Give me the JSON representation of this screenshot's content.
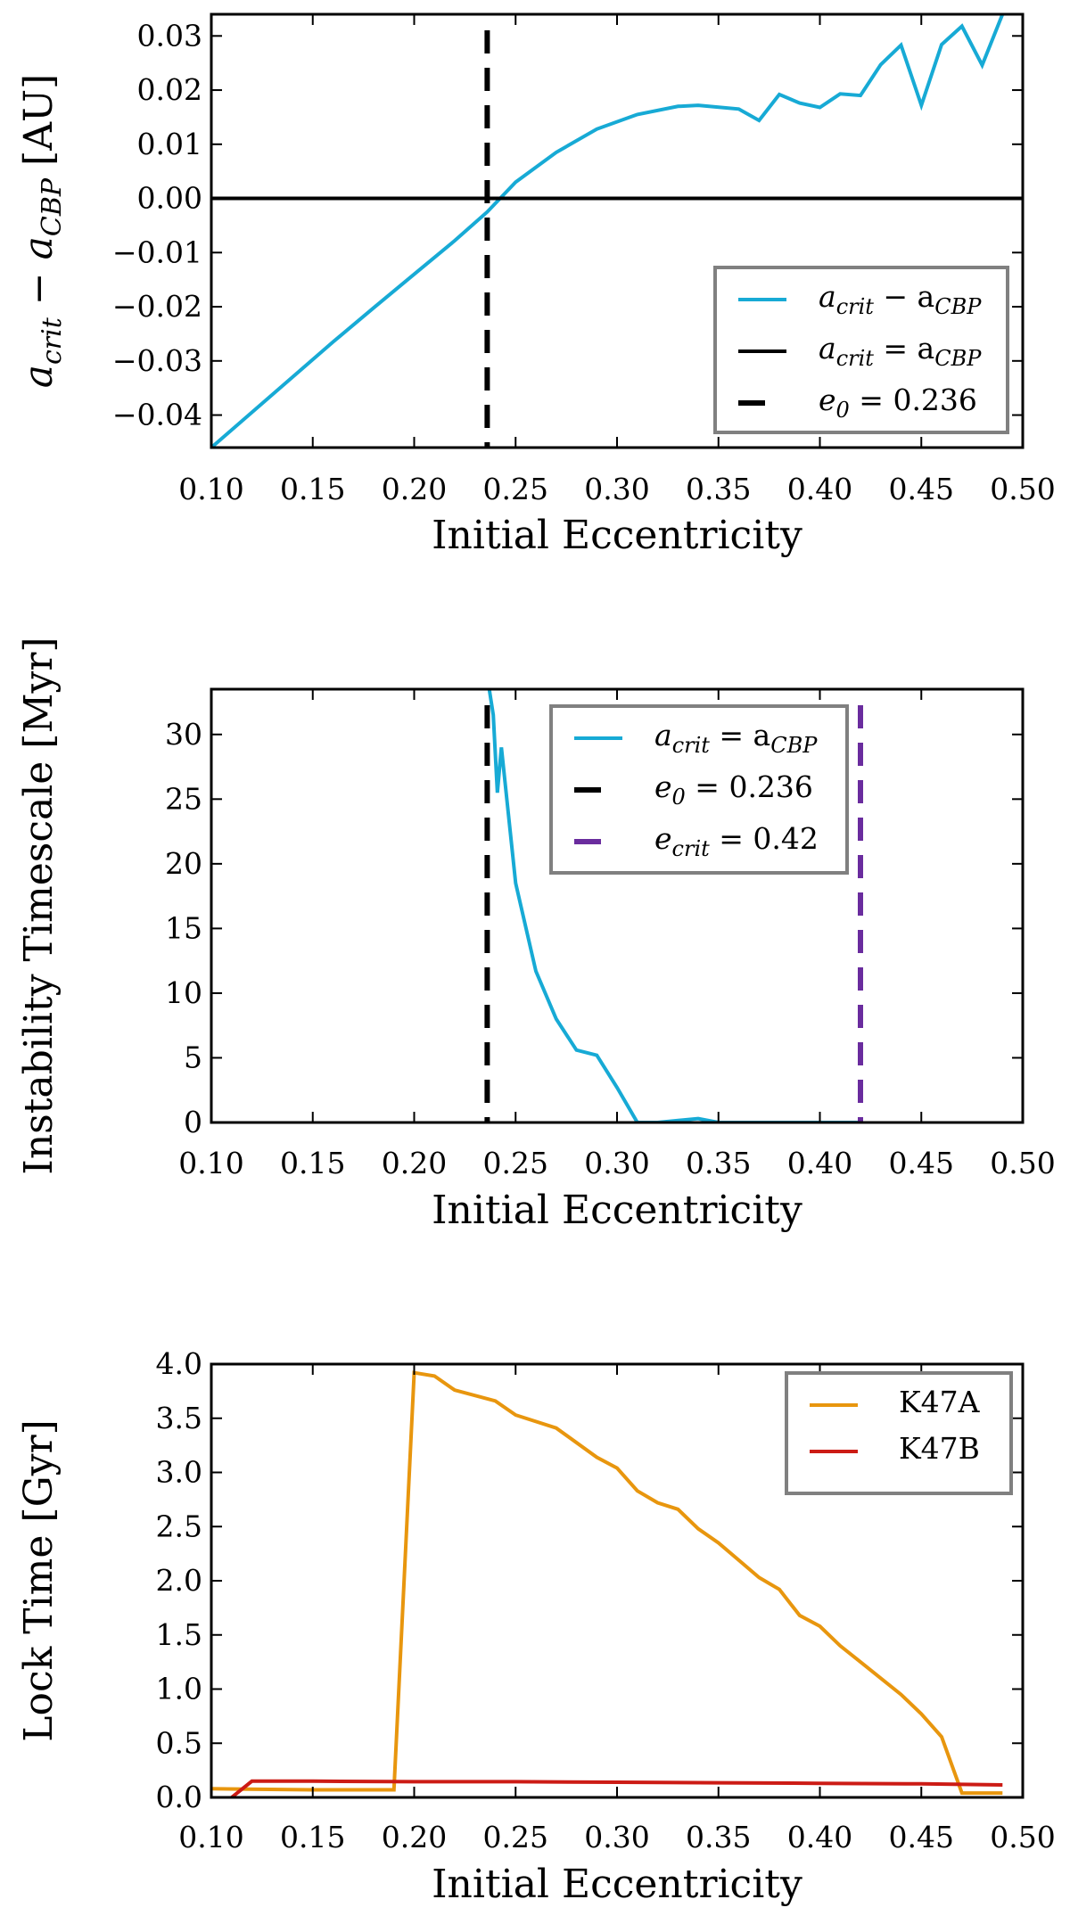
{
  "chart_data": [
    {
      "id": "p1",
      "type": "line",
      "xlabel": "Initial Eccentricity",
      "ylabel": "a_crit − a_CBP [AU]",
      "xlim": [
        0.1,
        0.5
      ],
      "ylim": [
        -0.046,
        0.034
      ],
      "xticks": [
        "0.10",
        "0.15",
        "0.20",
        "0.25",
        "0.30",
        "0.35",
        "0.40",
        "0.45",
        "0.50"
      ],
      "yticks": [
        {
          "v": 0.03,
          "label": "0.03"
        },
        {
          "v": 0.02,
          "label": "0.02"
        },
        {
          "v": 0.01,
          "label": "0.01"
        },
        {
          "v": 0.0,
          "label": "0.00"
        },
        {
          "v": -0.01,
          "label": "−0.01"
        },
        {
          "v": -0.02,
          "label": "−0.02"
        },
        {
          "v": -0.03,
          "label": "−0.03"
        },
        {
          "v": -0.04,
          "label": "−0.04"
        }
      ],
      "series": [
        {
          "name": "a_crit − a_CBP",
          "legend_main": "a",
          "legend_sub1": "crit",
          "legend_op": " − a",
          "legend_sub2": "CBP",
          "color": "#17aad5",
          "style": "solid",
          "x": [
            0.1,
            0.12,
            0.14,
            0.16,
            0.18,
            0.2,
            0.22,
            0.236,
            0.25,
            0.27,
            0.29,
            0.31,
            0.33,
            0.34,
            0.36,
            0.37,
            0.38,
            0.39,
            0.4,
            0.41,
            0.42,
            0.43,
            0.44,
            0.45,
            0.46,
            0.47,
            0.48,
            0.49
          ],
          "y": [
            -0.046,
            -0.0395,
            -0.033,
            -0.0265,
            -0.0202,
            -0.014,
            -0.0078,
            -0.0025,
            0.003,
            0.0085,
            0.0128,
            0.0155,
            0.017,
            0.0172,
            0.0165,
            0.0144,
            0.0192,
            0.0176,
            0.0168,
            0.0193,
            0.019,
            0.0247,
            0.0283,
            0.0172,
            0.0284,
            0.0318,
            0.0246,
            0.034
          ]
        },
        {
          "name": "a_crit = a_CBP",
          "legend_main": "a",
          "legend_sub1": "crit",
          "legend_op": " = a",
          "legend_sub2": "CBP",
          "color": "#000000",
          "style": "hline",
          "y0": 0.0
        },
        {
          "name": "e0 = 0.236",
          "legend_main": "e",
          "legend_sub1": "0",
          "legend_op": " = 0.236",
          "legend_sub2": "",
          "color": "#000000",
          "style": "vdash",
          "x0": 0.236
        }
      ],
      "legend": "lower-right"
    },
    {
      "id": "p2",
      "type": "line",
      "xlabel": "Initial Eccentricity",
      "ylabel": "Instability Timescale [Myr]",
      "xlim": [
        0.1,
        0.5
      ],
      "ylim": [
        0,
        33.5
      ],
      "xticks": [
        "0.10",
        "0.15",
        "0.20",
        "0.25",
        "0.30",
        "0.35",
        "0.40",
        "0.45",
        "0.50"
      ],
      "yticks": [
        {
          "v": 30,
          "label": "30"
        },
        {
          "v": 25,
          "label": "25"
        },
        {
          "v": 20,
          "label": "20"
        },
        {
          "v": 15,
          "label": "15"
        },
        {
          "v": 10,
          "label": "10"
        },
        {
          "v": 5,
          "label": "5"
        },
        {
          "v": 0,
          "label": "0"
        }
      ],
      "series": [
        {
          "name": "a_crit = a_CBP",
          "legend_main": "a",
          "legend_sub1": "crit",
          "legend_op": " = a",
          "legend_sub2": "CBP",
          "color": "#17aad5",
          "style": "solid",
          "x": [
            0.237,
            0.239,
            0.241,
            0.243,
            0.25,
            0.26,
            0.27,
            0.28,
            0.29,
            0.3,
            0.31,
            0.32,
            0.34,
            0.35,
            0.4,
            0.42
          ],
          "y": [
            33.5,
            31.5,
            25.5,
            29.0,
            18.5,
            11.7,
            8.0,
            5.6,
            5.2,
            2.7,
            0.0,
            0.0,
            0.3,
            0.0,
            0.0,
            0.0
          ]
        },
        {
          "name": "e0 = 0.236",
          "legend_main": "e",
          "legend_sub1": "0",
          "legend_op": " = 0.236",
          "legend_sub2": "",
          "color": "#000000",
          "style": "vdash",
          "x0": 0.236
        },
        {
          "name": "e_crit = 0.42",
          "legend_main": "e",
          "legend_sub1": "crit",
          "legend_op": " = 0.42",
          "legend_sub2": "",
          "color": "#6a2c9e",
          "style": "vdash",
          "x0": 0.42
        }
      ],
      "legend": "upper-center"
    },
    {
      "id": "p3",
      "type": "line",
      "xlabel": "Initial Eccentricity",
      "ylabel": "Lock Time [Gyr]",
      "xlim": [
        0.1,
        0.5
      ],
      "ylim": [
        0,
        4.0
      ],
      "xticks": [
        "0.10",
        "0.15",
        "0.20",
        "0.25",
        "0.30",
        "0.35",
        "0.40",
        "0.45",
        "0.50"
      ],
      "yticks": [
        {
          "v": 4.0,
          "label": "4.0"
        },
        {
          "v": 3.5,
          "label": "3.5"
        },
        {
          "v": 3.0,
          "label": "3.0"
        },
        {
          "v": 2.5,
          "label": "2.5"
        },
        {
          "v": 2.0,
          "label": "2.0"
        },
        {
          "v": 1.5,
          "label": "1.5"
        },
        {
          "v": 1.0,
          "label": "1.0"
        },
        {
          "v": 0.5,
          "label": "0.5"
        },
        {
          "v": 0.0,
          "label": "0.0"
        }
      ],
      "series": [
        {
          "name": "K47A",
          "color": "#e8960e",
          "style": "solid",
          "x": [
            0.1,
            0.15,
            0.19,
            0.2,
            0.21,
            0.22,
            0.24,
            0.25,
            0.27,
            0.29,
            0.3,
            0.31,
            0.32,
            0.33,
            0.34,
            0.35,
            0.36,
            0.37,
            0.38,
            0.39,
            0.4,
            0.41,
            0.42,
            0.43,
            0.44,
            0.45,
            0.46,
            0.47,
            0.48,
            0.49
          ],
          "y": [
            0.08,
            0.07,
            0.07,
            3.92,
            3.89,
            3.76,
            3.66,
            3.53,
            3.41,
            3.14,
            3.04,
            2.83,
            2.72,
            2.66,
            2.48,
            2.35,
            2.19,
            2.03,
            1.92,
            1.68,
            1.58,
            1.4,
            1.25,
            1.1,
            0.95,
            0.77,
            0.56,
            0.04,
            0.04,
            0.04
          ]
        },
        {
          "name": "K47B",
          "color": "#cc1b15",
          "style": "solid",
          "x": [
            0.11,
            0.12,
            0.15,
            0.2,
            0.25,
            0.3,
            0.35,
            0.4,
            0.45,
            0.49
          ],
          "y": [
            0.0,
            0.15,
            0.15,
            0.145,
            0.145,
            0.14,
            0.135,
            0.13,
            0.125,
            0.115
          ]
        }
      ],
      "legend": "upper-right"
    }
  ]
}
